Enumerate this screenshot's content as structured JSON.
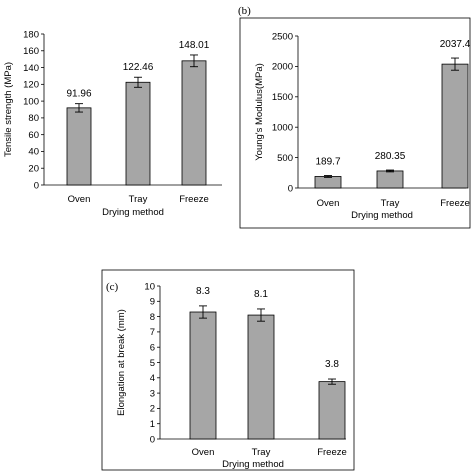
{
  "chart_data": [
    {
      "type": "bar",
      "panel_label": "",
      "categories": [
        "Oven",
        "Tray",
        "Freeze"
      ],
      "values": [
        91.96,
        122.46,
        148.01
      ],
      "value_labels": [
        "91.96",
        "122.46",
        "148.01"
      ],
      "errors": [
        5,
        6,
        7
      ],
      "title": "",
      "xlabel": "Drying method",
      "ylabel": "Tensile strength (MPa)",
      "ylim": [
        0,
        180
      ],
      "yticks": [
        "0",
        "20",
        "40",
        "60",
        "80",
        "100",
        "120",
        "140",
        "160",
        "180"
      ],
      "grid": false
    },
    {
      "type": "bar",
      "panel_label": "(b)",
      "categories": [
        "Oven",
        "Tray",
        "Freeze"
      ],
      "values": [
        189.7,
        280.35,
        2037.4
      ],
      "value_labels": [
        "189.7",
        "280.35",
        "2037.4"
      ],
      "errors": [
        15,
        15,
        100
      ],
      "title": "",
      "xlabel": "Drying method",
      "ylabel": "Young's Modulus(MPa)",
      "ylim": [
        0,
        2500
      ],
      "yticks": [
        "0",
        "500",
        "1000",
        "1500",
        "2000",
        "2500"
      ],
      "grid": false
    },
    {
      "type": "bar",
      "panel_label": "(c)",
      "categories": [
        "Oven",
        "Tray",
        "Freeze"
      ],
      "values": [
        8.3,
        8.1,
        3.75
      ],
      "value_labels": [
        "8.3",
        "8.1",
        "3.8"
      ],
      "errors": [
        0.4,
        0.4,
        0.17
      ],
      "title": "",
      "xlabel": "Drying method",
      "ylabel": "Elongation at break (mm)",
      "ylim": [
        0,
        10
      ],
      "yticks": [
        "0",
        "1",
        "2",
        "3",
        "4",
        "5",
        "6",
        "7",
        "8",
        "9",
        "10"
      ],
      "grid": false
    }
  ]
}
